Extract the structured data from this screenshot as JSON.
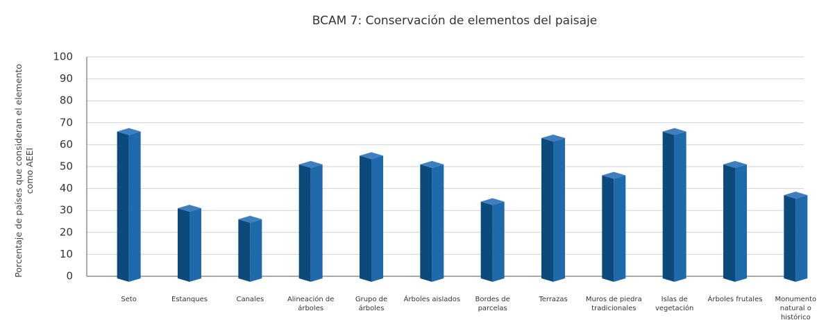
{
  "chart_data": {
    "type": "bar3d",
    "title": "BCAM 7: Conservación de elementos del paisaje",
    "y_label": "Porcentaje de países que consideran el elemento como AEEI",
    "categories": [
      "Seto",
      "Estanques",
      "Canales",
      "Alineación de árboles",
      "Grupo de árboles",
      "Árboles aislados",
      "Bordes de parcelas",
      "Terrazas",
      "Muros de piedra tradicionales",
      "Islas de vegetación",
      "Árboles frutales",
      "Monumento natural o histórico"
    ],
    "values": [
      66,
      31,
      26,
      51,
      55,
      51,
      34,
      63,
      46,
      66,
      51,
      37
    ],
    "color": "#1f6aab",
    "side_color": "#0b4a7a",
    "top_color": "#3f7fc0",
    "ylim": [
      0,
      100
    ],
    "yticks": [
      0,
      10,
      20,
      30,
      40,
      50,
      60,
      70,
      80,
      90,
      100
    ],
    "grid": true
  }
}
